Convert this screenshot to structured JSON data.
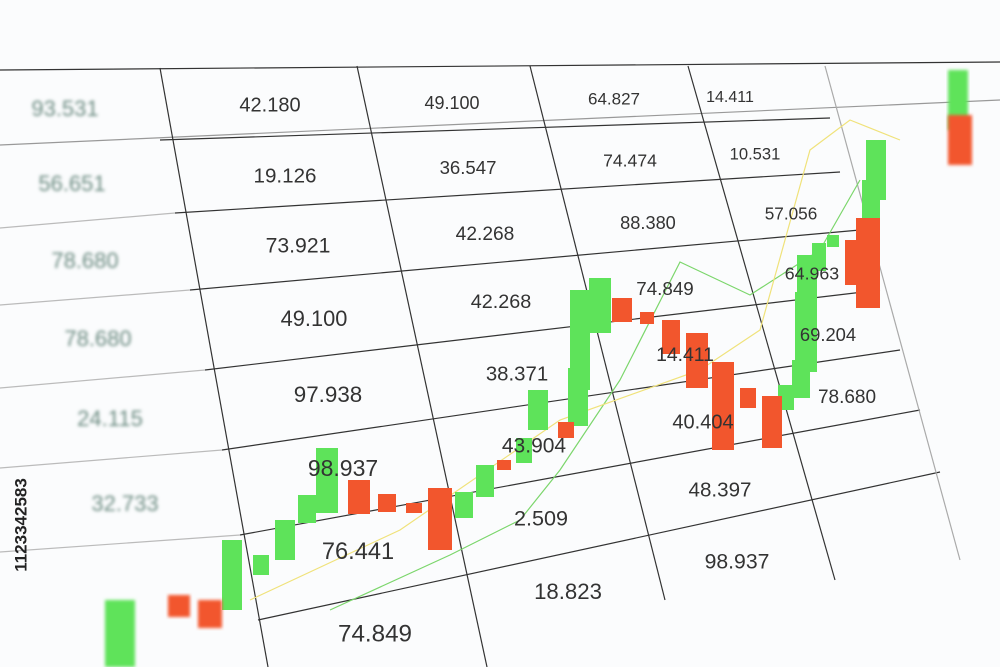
{
  "table": {
    "columns": [
      [
        "93.531",
        "56.651",
        "78.680",
        "78.680",
        "24.115",
        "32.733"
      ],
      [
        "42.180",
        "19.126",
        "73.921",
        "49.100",
        "97.938",
        "98.937",
        "76.441",
        "74.849"
      ],
      [
        "49.100",
        "36.547",
        "42.268",
        "42.268",
        "38.371",
        "43.904",
        "2.509",
        "18.823"
      ],
      [
        "64.827",
        "74.474",
        "88.380",
        "74.849",
        "14.411",
        "40.404",
        "48.397",
        "98.937"
      ],
      [
        "14.411",
        "10.531",
        "57.056",
        "64.963",
        "69.204",
        "78.680"
      ]
    ]
  },
  "watermark": "1123342583"
}
